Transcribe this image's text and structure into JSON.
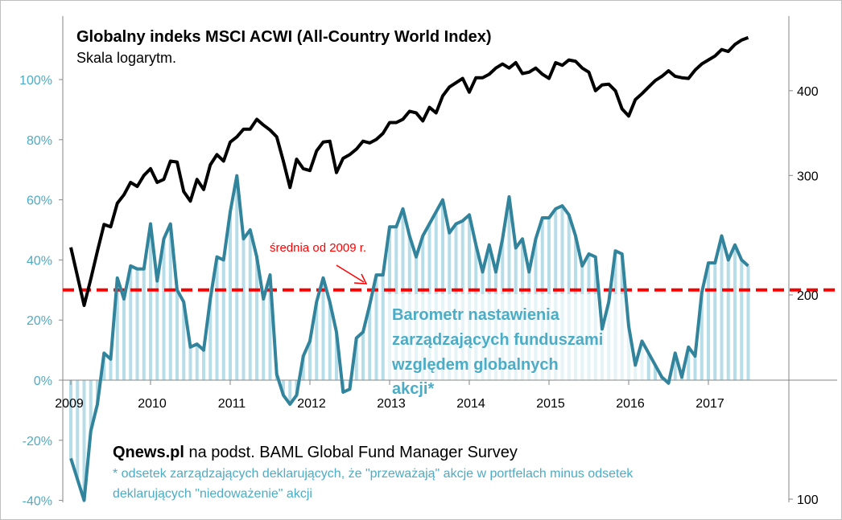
{
  "chart_data": {
    "type": "line",
    "title": "Globalny indeks MSCI ACWI (All-Country World Index)",
    "subtitle": "Skala logarytm.",
    "source_bold": "Qnews.pl",
    "source_rest": " na podst. BAML Global Fund Manager Survey",
    "footnote_line1": "* odsetek zarządzających deklarujących, że \"przeważają\" akcje w portfelach minus odsetek",
    "footnote_line2": "deklarujących \"niedoważenie\" akcji",
    "series_label_lines": [
      "Barometr nastawienia",
      "zarządzających  funduszami",
      "względem globalnych",
      "akcji*"
    ],
    "average_label": "średnia od 2009 r.",
    "average_value": 30,
    "x_start": "2009-01",
    "x_tick_labels": [
      "2009",
      "2010",
      "2011",
      "2012",
      "2013",
      "2014",
      "2015",
      "2016",
      "2017"
    ],
    "left_axis": {
      "ticks": [
        -40,
        -20,
        0,
        20,
        40,
        60,
        80,
        100
      ],
      "tick_labels": [
        "-40%",
        "-20%",
        "0%",
        "20%",
        "40%",
        "60%",
        "80%",
        "100%"
      ],
      "range": [
        -40,
        110
      ]
    },
    "right_axis": {
      "scale": "log",
      "ticks": [
        100,
        200,
        300,
        400
      ],
      "tick_labels": [
        "100",
        "200",
        "300",
        "400"
      ],
      "range": [
        100,
        500
      ]
    },
    "series": [
      {
        "name": "Barometr nastawienia zarządzających funduszami względem globalnych akcji",
        "axis": "left",
        "unit": "%",
        "color": "#31849b",
        "bar_color": "#b7dde8",
        "values": [
          -26,
          -33,
          -40,
          -17,
          -8,
          9,
          7,
          34,
          27,
          38,
          37,
          37,
          52,
          33,
          47,
          52,
          30,
          26,
          11,
          12,
          10,
          27,
          41,
          40,
          56,
          68,
          47,
          50,
          41,
          27,
          35,
          2,
          -5,
          -8,
          -5,
          8,
          13,
          26,
          34,
          26,
          16,
          -4,
          -3,
          14,
          16,
          25,
          35,
          35,
          51,
          51,
          57,
          48,
          41,
          48,
          52,
          56,
          60,
          49,
          52,
          53,
          55,
          45,
          36,
          45,
          36,
          47,
          61,
          44,
          47,
          36,
          47,
          54,
          54,
          57,
          58,
          55,
          48,
          38,
          42,
          41,
          17,
          26,
          43,
          42,
          18,
          5,
          13,
          9,
          5,
          1,
          -1,
          9,
          1,
          11,
          8,
          29,
          39,
          39,
          48,
          40,
          45,
          40,
          38
        ]
      },
      {
        "name": "MSCI ACWI",
        "axis": "right",
        "color": "#000000",
        "values": [
          235,
          213,
          193,
          211,
          232,
          254,
          252,
          273,
          281,
          293,
          289,
          300,
          307,
          293,
          296,
          315,
          314,
          284,
          275,
          296,
          286,
          311,
          322,
          315,
          336,
          342,
          351,
          351,
          363,
          356,
          350,
          342,
          315,
          288,
          317,
          307,
          305,
          326,
          336,
          337,
          303,
          318,
          322,
          328,
          337,
          335,
          339,
          346,
          359,
          359,
          363,
          373,
          371,
          361,
          378,
          371,
          393,
          405,
          411,
          417,
          398,
          418,
          418,
          423,
          432,
          438,
          432,
          440,
          424,
          426,
          432,
          423,
          417,
          440,
          436,
          444,
          442,
          432,
          426,
          400,
          408,
          409,
          400,
          376,
          367,
          388,
          396,
          405,
          414,
          420,
          428,
          420,
          418,
          417,
          429,
          438,
          444,
          450,
          460,
          457,
          468,
          475,
          479
        ]
      }
    ],
    "average_line_color": "#ff0000"
  }
}
